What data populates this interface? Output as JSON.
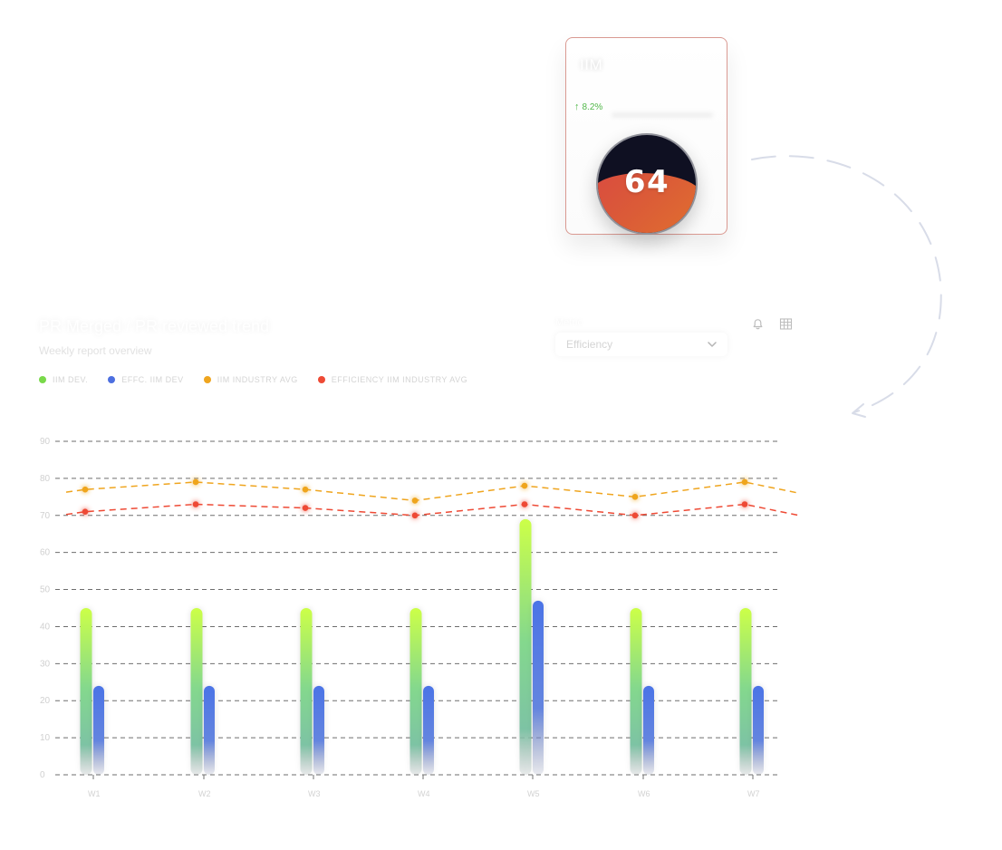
{
  "metric_card": {
    "title": "IIM",
    "change": "8.2%",
    "value": "64",
    "change_color": "#52b84a",
    "gauge_colors": {
      "dark": "#0f1022",
      "fill_start": "#d94b40",
      "fill_end": "#e1712e"
    }
  },
  "filter": {
    "label": "Metric",
    "selected": "Efficiency"
  },
  "toolbar": {
    "icons": [
      "bell-icon",
      "table-icon"
    ]
  },
  "chart_data": {
    "type": "bar",
    "title": "PR Merged / PR reviewed trend",
    "subtitle": "Weekly report overview",
    "categories": [
      "W1",
      "W2",
      "W3",
      "W4",
      "W5",
      "W6",
      "W7"
    ],
    "ylim": [
      0,
      90
    ],
    "y_ticks": [
      0,
      10,
      20,
      30,
      40,
      50,
      60,
      70,
      80,
      90
    ],
    "grid": true,
    "legend_position": "top-left",
    "series": [
      {
        "name": "IIM DEV.",
        "kind": "bar",
        "color": "#79d94a",
        "values": [
          45,
          45,
          45,
          45,
          69,
          45,
          45
        ]
      },
      {
        "name": "EFFC. IIM DEV",
        "kind": "bar",
        "color": "#4d6fe0",
        "values": [
          24,
          24,
          24,
          24,
          47,
          24,
          24
        ]
      },
      {
        "name": "IIM INDUSTRY AVG",
        "kind": "line",
        "color": "#efa51f",
        "values": [
          77,
          79,
          77,
          74,
          78,
          75,
          79
        ]
      },
      {
        "name": "EFFICIENCY IIM INDUSTRY AVG",
        "kind": "line",
        "color": "#ee4a35",
        "values": [
          71,
          73,
          72,
          70,
          73,
          70,
          73
        ]
      }
    ]
  }
}
